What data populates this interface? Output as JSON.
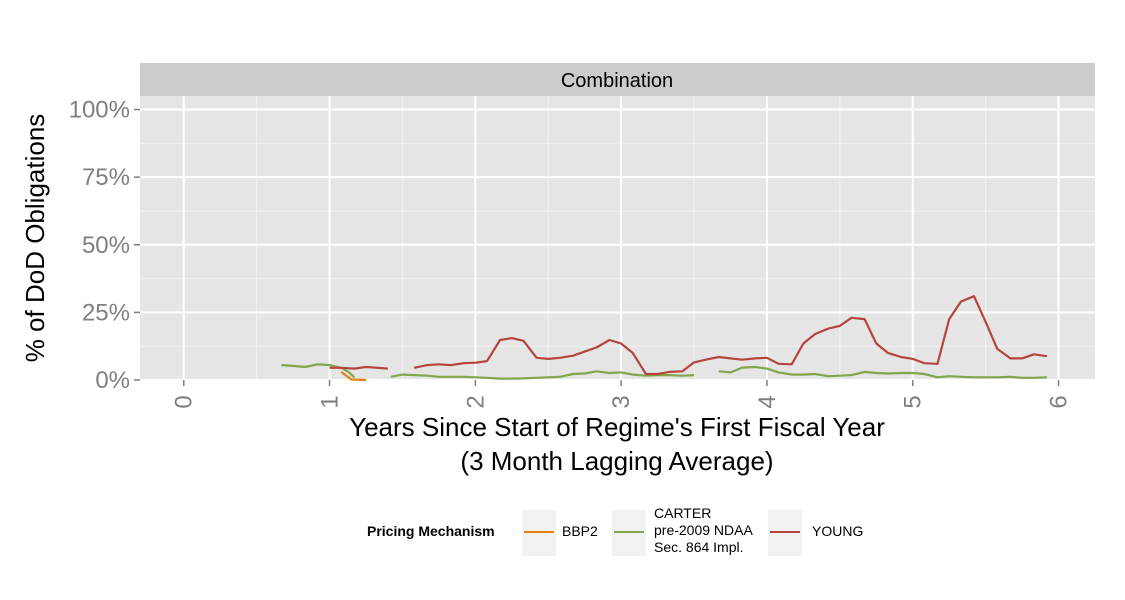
{
  "chart_data": {
    "type": "line",
    "facet": "Combination",
    "title": "",
    "xlabel": "Years Since Start of Regime's First Fiscal Year",
    "xlabel_line2": "(3 Month Lagging Average)",
    "ylabel": "% of DoD Obligations",
    "xlim": [
      -0.3,
      6.25
    ],
    "ylim": [
      0,
      1.05
    ],
    "x_ticks": [
      0,
      1,
      2,
      3,
      4,
      5,
      6
    ],
    "x_tick_labels": [
      "0",
      "1",
      "2",
      "3",
      "4",
      "5",
      "6"
    ],
    "y_ticks": [
      0,
      0.25,
      0.5,
      0.75,
      1.0
    ],
    "y_tick_labels": [
      "0%",
      "25%",
      "50%",
      "75%",
      "100%"
    ],
    "grid": true,
    "legend": {
      "title": "Pricing Mechanism",
      "position": "bottom",
      "entries": [
        {
          "label": "BBP2",
          "color": "#e6820e"
        },
        {
          "label": "CARTER\npre-2009 NDAA\nSec. 864 Impl.",
          "color": "#82a64a"
        },
        {
          "label": "YOUNG",
          "color": "#b5453c"
        }
      ]
    },
    "series": [
      {
        "name": "BBP2",
        "color": "#e6820e",
        "segments": [
          [
            [
              1.08,
              0.03
            ],
            [
              1.15,
              0.002
            ],
            [
              1.25,
              0.0
            ]
          ]
        ]
      },
      {
        "name": "CARTER\npre-2009 NDAA\nSec. 864 Impl.",
        "color": "#82a64a",
        "segments": [
          [
            [
              0.67,
              0.055
            ],
            [
              0.75,
              0.052
            ],
            [
              0.83,
              0.048
            ],
            [
              0.92,
              0.058
            ],
            [
              1.0,
              0.055
            ],
            [
              1.08,
              0.045
            ],
            [
              1.13,
              0.03
            ],
            [
              1.17,
              0.01
            ]
          ],
          [
            [
              1.42,
              0.012
            ],
            [
              1.5,
              0.02
            ],
            [
              1.58,
              0.018
            ],
            [
              1.67,
              0.016
            ],
            [
              1.75,
              0.012
            ],
            [
              1.83,
              0.012
            ],
            [
              1.92,
              0.012
            ],
            [
              2.0,
              0.01
            ],
            [
              2.08,
              0.008
            ],
            [
              2.17,
              0.005
            ],
            [
              2.25,
              0.005
            ],
            [
              2.33,
              0.006
            ],
            [
              2.42,
              0.008
            ],
            [
              2.5,
              0.01
            ],
            [
              2.58,
              0.012
            ],
            [
              2.67,
              0.022
            ],
            [
              2.75,
              0.024
            ],
            [
              2.83,
              0.032
            ],
            [
              2.92,
              0.026
            ],
            [
              3.0,
              0.028
            ],
            [
              3.08,
              0.02
            ],
            [
              3.17,
              0.016
            ],
            [
              3.25,
              0.018
            ],
            [
              3.33,
              0.018
            ],
            [
              3.42,
              0.016
            ],
            [
              3.5,
              0.018
            ]
          ],
          [
            [
              3.67,
              0.032
            ],
            [
              3.75,
              0.028
            ],
            [
              3.83,
              0.046
            ],
            [
              3.92,
              0.048
            ],
            [
              4.0,
              0.042
            ],
            [
              4.08,
              0.028
            ],
            [
              4.17,
              0.02
            ],
            [
              4.25,
              0.02
            ],
            [
              4.33,
              0.022
            ],
            [
              4.42,
              0.014
            ],
            [
              4.5,
              0.016
            ],
            [
              4.58,
              0.018
            ],
            [
              4.67,
              0.03
            ],
            [
              4.75,
              0.026
            ],
            [
              4.83,
              0.024
            ],
            [
              4.92,
              0.026
            ],
            [
              5.0,
              0.026
            ],
            [
              5.08,
              0.022
            ],
            [
              5.17,
              0.01
            ],
            [
              5.25,
              0.014
            ],
            [
              5.33,
              0.012
            ],
            [
              5.42,
              0.01
            ],
            [
              5.5,
              0.01
            ],
            [
              5.58,
              0.01
            ],
            [
              5.67,
              0.012
            ],
            [
              5.75,
              0.008
            ],
            [
              5.83,
              0.008
            ],
            [
              5.92,
              0.01
            ]
          ]
        ]
      },
      {
        "name": "YOUNG",
        "color": "#b5453c",
        "segments": [
          [
            [
              1.0,
              0.045
            ],
            [
              1.08,
              0.045
            ],
            [
              1.17,
              0.042
            ],
            [
              1.25,
              0.048
            ],
            [
              1.33,
              0.045
            ],
            [
              1.4,
              0.042
            ]
          ],
          [
            [
              1.58,
              0.045
            ],
            [
              1.67,
              0.055
            ],
            [
              1.75,
              0.058
            ],
            [
              1.83,
              0.055
            ],
            [
              1.92,
              0.062
            ],
            [
              2.0,
              0.064
            ],
            [
              2.08,
              0.07
            ],
            [
              2.17,
              0.148
            ],
            [
              2.25,
              0.155
            ],
            [
              2.33,
              0.145
            ],
            [
              2.42,
              0.082
            ],
            [
              2.5,
              0.078
            ],
            [
              2.58,
              0.082
            ],
            [
              2.67,
              0.09
            ],
            [
              2.75,
              0.105
            ],
            [
              2.83,
              0.12
            ],
            [
              2.92,
              0.148
            ],
            [
              3.0,
              0.135
            ],
            [
              3.08,
              0.1
            ],
            [
              3.17,
              0.022
            ],
            [
              3.25,
              0.022
            ],
            [
              3.33,
              0.03
            ],
            [
              3.42,
              0.032
            ],
            [
              3.5,
              0.065
            ],
            [
              3.58,
              0.075
            ],
            [
              3.67,
              0.085
            ],
            [
              3.75,
              0.08
            ],
            [
              3.83,
              0.075
            ],
            [
              3.92,
              0.08
            ],
            [
              4.0,
              0.082
            ],
            [
              4.08,
              0.06
            ],
            [
              4.17,
              0.058
            ],
            [
              4.25,
              0.135
            ],
            [
              4.33,
              0.17
            ],
            [
              4.42,
              0.19
            ],
            [
              4.5,
              0.2
            ],
            [
              4.58,
              0.23
            ],
            [
              4.67,
              0.225
            ],
            [
              4.75,
              0.135
            ],
            [
              4.83,
              0.1
            ],
            [
              4.92,
              0.085
            ],
            [
              5.0,
              0.078
            ],
            [
              5.08,
              0.062
            ],
            [
              5.17,
              0.06
            ],
            [
              5.25,
              0.225
            ],
            [
              5.33,
              0.29
            ],
            [
              5.42,
              0.31
            ],
            [
              5.5,
              0.215
            ],
            [
              5.58,
              0.115
            ],
            [
              5.67,
              0.08
            ],
            [
              5.75,
              0.08
            ],
            [
              5.83,
              0.095
            ],
            [
              5.92,
              0.088
            ]
          ]
        ]
      }
    ]
  }
}
